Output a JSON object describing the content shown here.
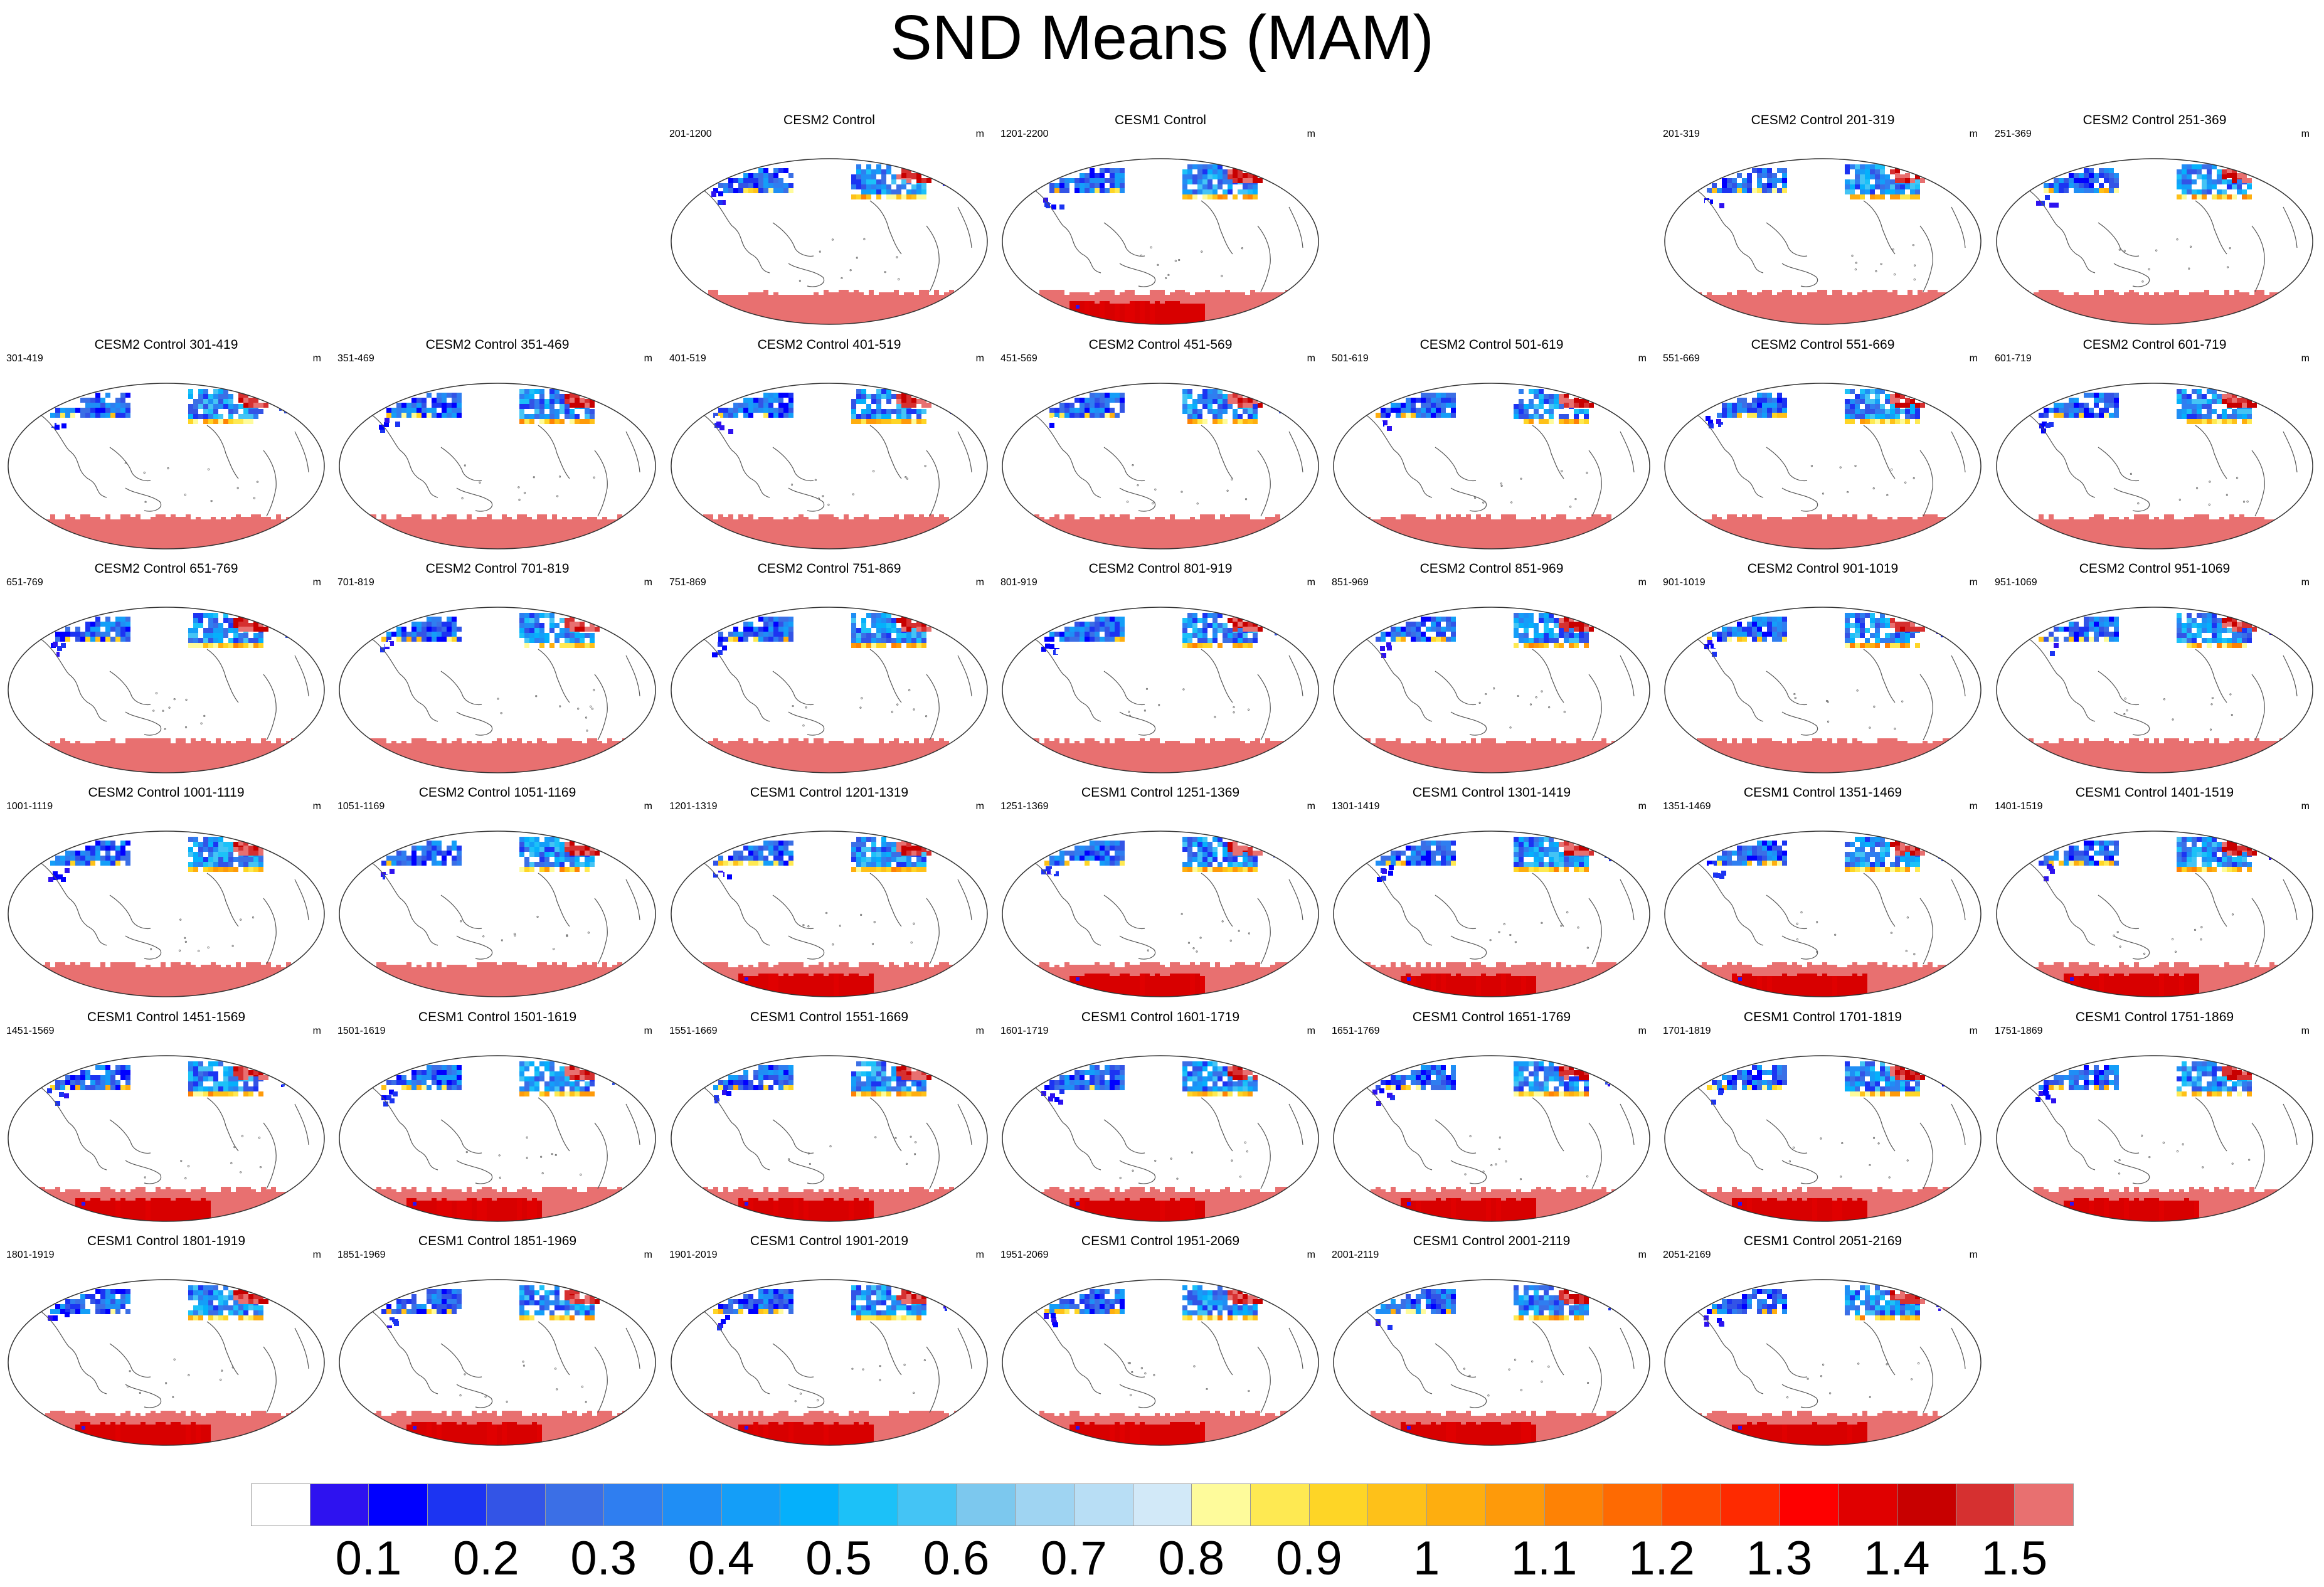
{
  "title": "SND Means (MAM)",
  "unit": "m",
  "panels": [
    {
      "title": "CESM2 Control",
      "range": "201-1200",
      "row": 0,
      "col": 2,
      "model": "CESM2"
    },
    {
      "title": "CESM1 Control",
      "range": "1201-2200",
      "row": 0,
      "col": 3,
      "model": "CESM1"
    },
    {
      "title": "CESM2 Control 201-319",
      "range": "201-319",
      "row": 0,
      "col": 5,
      "model": "CESM2"
    },
    {
      "title": "CESM2 Control 251-369",
      "range": "251-369",
      "row": 0,
      "col": 6,
      "model": "CESM2"
    },
    {
      "title": "CESM2 Control 301-419",
      "range": "301-419",
      "row": 1,
      "col": 0,
      "model": "CESM2"
    },
    {
      "title": "CESM2 Control 351-469",
      "range": "351-469",
      "row": 1,
      "col": 1,
      "model": "CESM2"
    },
    {
      "title": "CESM2 Control 401-519",
      "range": "401-519",
      "row": 1,
      "col": 2,
      "model": "CESM2"
    },
    {
      "title": "CESM2 Control 451-569",
      "range": "451-569",
      "row": 1,
      "col": 3,
      "model": "CESM2"
    },
    {
      "title": "CESM2 Control 501-619",
      "range": "501-619",
      "row": 1,
      "col": 4,
      "model": "CESM2"
    },
    {
      "title": "CESM2 Control 551-669",
      "range": "551-669",
      "row": 1,
      "col": 5,
      "model": "CESM2"
    },
    {
      "title": "CESM2 Control 601-719",
      "range": "601-719",
      "row": 1,
      "col": 6,
      "model": "CESM2"
    },
    {
      "title": "CESM2 Control 651-769",
      "range": "651-769",
      "row": 2,
      "col": 0,
      "model": "CESM2"
    },
    {
      "title": "CESM2 Control 701-819",
      "range": "701-819",
      "row": 2,
      "col": 1,
      "model": "CESM2"
    },
    {
      "title": "CESM2 Control 751-869",
      "range": "751-869",
      "row": 2,
      "col": 2,
      "model": "CESM2"
    },
    {
      "title": "CESM2 Control 801-919",
      "range": "801-919",
      "row": 2,
      "col": 3,
      "model": "CESM2"
    },
    {
      "title": "CESM2 Control 851-969",
      "range": "851-969",
      "row": 2,
      "col": 4,
      "model": "CESM2"
    },
    {
      "title": "CESM2 Control 901-1019",
      "range": "901-1019",
      "row": 2,
      "col": 5,
      "model": "CESM2"
    },
    {
      "title": "CESM2 Control 951-1069",
      "range": "951-1069",
      "row": 2,
      "col": 6,
      "model": "CESM2"
    },
    {
      "title": "CESM2 Control 1001-1119",
      "range": "1001-1119",
      "row": 3,
      "col": 0,
      "model": "CESM2"
    },
    {
      "title": "CESM2 Control 1051-1169",
      "range": "1051-1169",
      "row": 3,
      "col": 1,
      "model": "CESM2"
    },
    {
      "title": "CESM1 Control 1201-1319",
      "range": "1201-1319",
      "row": 3,
      "col": 2,
      "model": "CESM1"
    },
    {
      "title": "CESM1 Control 1251-1369",
      "range": "1251-1369",
      "row": 3,
      "col": 3,
      "model": "CESM1"
    },
    {
      "title": "CESM1 Control 1301-1419",
      "range": "1301-1419",
      "row": 3,
      "col": 4,
      "model": "CESM1"
    },
    {
      "title": "CESM1 Control 1351-1469",
      "range": "1351-1469",
      "row": 3,
      "col": 5,
      "model": "CESM1"
    },
    {
      "title": "CESM1 Control 1401-1519",
      "range": "1401-1519",
      "row": 3,
      "col": 6,
      "model": "CESM1"
    },
    {
      "title": "CESM1 Control 1451-1569",
      "range": "1451-1569",
      "row": 4,
      "col": 0,
      "model": "CESM1"
    },
    {
      "title": "CESM1 Control 1501-1619",
      "range": "1501-1619",
      "row": 4,
      "col": 1,
      "model": "CESM1"
    },
    {
      "title": "CESM1 Control 1551-1669",
      "range": "1551-1669",
      "row": 4,
      "col": 2,
      "model": "CESM1"
    },
    {
      "title": "CESM1 Control 1601-1719",
      "range": "1601-1719",
      "row": 4,
      "col": 3,
      "model": "CESM1"
    },
    {
      "title": "CESM1 Control 1651-1769",
      "range": "1651-1769",
      "row": 4,
      "col": 4,
      "model": "CESM1"
    },
    {
      "title": "CESM1 Control 1701-1819",
      "range": "1701-1819",
      "row": 4,
      "col": 5,
      "model": "CESM1"
    },
    {
      "title": "CESM1 Control 1751-1869",
      "range": "1751-1869",
      "row": 4,
      "col": 6,
      "model": "CESM1"
    },
    {
      "title": "CESM1 Control 1801-1919",
      "range": "1801-1919",
      "row": 5,
      "col": 0,
      "model": "CESM1"
    },
    {
      "title": "CESM1 Control 1851-1969",
      "range": "1851-1969",
      "row": 5,
      "col": 1,
      "model": "CESM1"
    },
    {
      "title": "CESM1 Control 1901-2019",
      "range": "1901-2019",
      "row": 5,
      "col": 2,
      "model": "CESM1"
    },
    {
      "title": "CESM1 Control 1951-2069",
      "range": "1951-2069",
      "row": 5,
      "col": 3,
      "model": "CESM1"
    },
    {
      "title": "CESM1 Control 2001-2119",
      "range": "2001-2119",
      "row": 5,
      "col": 4,
      "model": "CESM1"
    },
    {
      "title": "CESM1 Control 2051-2169",
      "range": "2051-2169",
      "row": 5,
      "col": 5,
      "model": "CESM1"
    }
  ],
  "colorbar": {
    "colors": [
      "#ffffff",
      "#2e12f0",
      "#0000ff",
      "#1c34f2",
      "#3354e6",
      "#3b6fe6",
      "#2f7ef0",
      "#1f8ef5",
      "#149ef8",
      "#05b0fb",
      "#1cc1f8",
      "#44c4f5",
      "#7cc8ee",
      "#9fd4f2",
      "#b8def5",
      "#d2e9f8",
      "#fefb9b",
      "#fee952",
      "#fed526",
      "#fec119",
      "#feae0f",
      "#fe9a0a",
      "#fe8205",
      "#fe6a02",
      "#fe4a00",
      "#fe2a00",
      "#fe0000",
      "#e00000",
      "#c80000",
      "#d63030",
      "#e87070"
    ],
    "labels": [
      "0.1",
      "0.2",
      "0.3",
      "0.4",
      "0.5",
      "0.6",
      "0.7",
      "0.8",
      "0.9",
      "1",
      "1.1",
      "1.2",
      "1.3",
      "1.4",
      "1.5"
    ]
  }
}
